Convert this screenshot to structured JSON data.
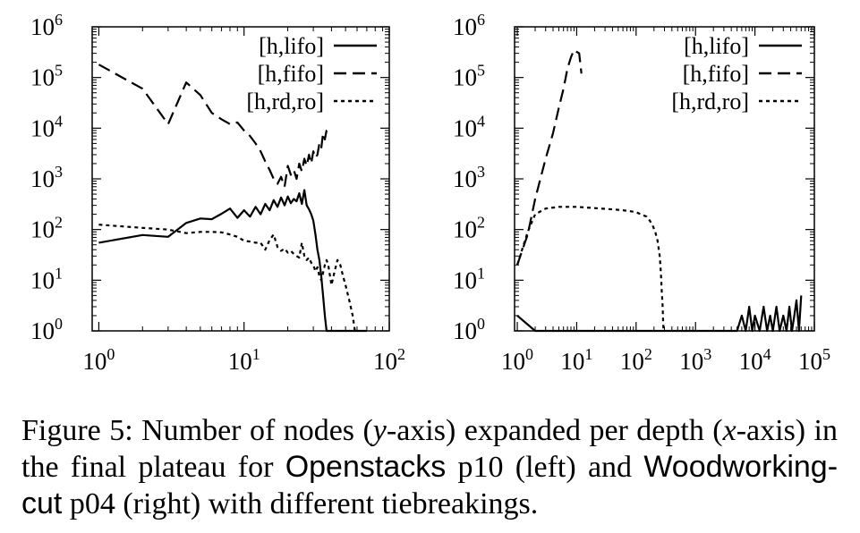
{
  "caption": {
    "p1": "Figure 5: Number of nodes (",
    "y_var": "y",
    "p2": "-axis) expanded per depth (",
    "x_var": "x",
    "p3": "-axis) in the final plateau for ",
    "dom1": "Openstacks",
    "p4": " p10 (left) and ",
    "dom2": "Woodworking-cut",
    "p5": " p04 (right) with different tiebreakings."
  },
  "chart_data": [
    {
      "type": "line",
      "xscale": "log",
      "yscale": "log",
      "xlim": [
        0.9,
        100
      ],
      "ylim": [
        1,
        1000000
      ],
      "x_ticks": [
        1,
        10,
        100
      ],
      "x_tick_labels": [
        [
          "10",
          "0"
        ],
        [
          "10",
          "1"
        ],
        [
          "10",
          "2"
        ]
      ],
      "y_ticks": [
        1,
        10,
        100,
        1000,
        10000,
        100000,
        1000000
      ],
      "y_tick_labels": [
        [
          "10",
          "0"
        ],
        [
          "10",
          "1"
        ],
        [
          "10",
          "2"
        ],
        [
          "10",
          "3"
        ],
        [
          "10",
          "4"
        ],
        [
          "10",
          "5"
        ],
        [
          "10",
          "6"
        ]
      ],
      "legend_position": "top-right",
      "series": [
        {
          "name": "[h,lifo]",
          "dash": "solid",
          "x": [
            1,
            2,
            3,
            4,
            5,
            6,
            7,
            8,
            9,
            10,
            11,
            12,
            13,
            14,
            15,
            16,
            17,
            18,
            19,
            20,
            21,
            22,
            23,
            24,
            25,
            26,
            27,
            28,
            29,
            30,
            31,
            32,
            33,
            34,
            35,
            36,
            37,
            38,
            39,
            40,
            50,
            70
          ],
          "y": [
            55,
            78,
            72,
            135,
            165,
            160,
            205,
            260,
            170,
            240,
            180,
            280,
            200,
            320,
            240,
            380,
            280,
            430,
            300,
            450,
            330,
            400,
            360,
            520,
            320,
            600,
            300,
            250,
            200,
            150,
            80,
            40,
            25,
            12,
            5,
            2,
            1,
            1,
            1,
            1,
            1,
            1
          ]
        },
        {
          "name": "[h,fifo]",
          "dash": "dashed",
          "x": [
            1,
            2,
            3,
            4,
            5,
            6,
            7,
            8,
            9,
            10,
            11,
            12,
            13,
            14,
            15,
            16,
            17,
            18,
            19,
            20,
            21,
            22,
            23,
            24,
            25,
            26,
            27,
            28,
            29,
            30,
            31,
            32,
            33,
            34,
            35,
            36,
            37,
            38
          ],
          "y": [
            180000,
            60000,
            12000,
            80000,
            45000,
            20000,
            15000,
            12000,
            13000,
            9000,
            7000,
            5000,
            3500,
            2200,
            1500,
            1000,
            800,
            1100,
            700,
            1800,
            1200,
            1500,
            1000,
            2000,
            1400,
            2500,
            1800,
            3000,
            2000,
            3500,
            2600,
            3000,
            5000,
            4000,
            8000,
            6000,
            9000,
            9500
          ]
        },
        {
          "name": "[h,rd,ro]",
          "dash": "dotted",
          "x": [
            1,
            2,
            3,
            4,
            5,
            6,
            7,
            8,
            9,
            10,
            11,
            12,
            13,
            14,
            15,
            16,
            17,
            18,
            19,
            20,
            21,
            22,
            23,
            24,
            25,
            26,
            27,
            28,
            29,
            30,
            31,
            32,
            33,
            34,
            35,
            36,
            37,
            38,
            40,
            42,
            44,
            46,
            48,
            50,
            53,
            56,
            58,
            60
          ],
          "y": [
            125,
            108,
            100,
            85,
            90,
            90,
            88,
            80,
            72,
            60,
            58,
            55,
            55,
            40,
            62,
            80,
            45,
            38,
            42,
            35,
            38,
            33,
            30,
            28,
            55,
            30,
            25,
            28,
            22,
            20,
            15,
            18,
            12,
            10,
            14,
            20,
            25,
            20,
            8,
            15,
            25,
            20,
            12,
            8,
            4,
            2,
            1,
            1
          ]
        }
      ]
    },
    {
      "type": "line",
      "xscale": "log",
      "yscale": "log",
      "xlim": [
        0.9,
        100000
      ],
      "ylim": [
        1,
        1000000
      ],
      "x_ticks": [
        1,
        10,
        100,
        1000,
        10000,
        100000
      ],
      "x_tick_labels": [
        [
          "10",
          "0"
        ],
        [
          "10",
          "1"
        ],
        [
          "10",
          "2"
        ],
        [
          "10",
          "3"
        ],
        [
          "10",
          "4"
        ],
        [
          "10",
          "5"
        ]
      ],
      "y_ticks": [
        1,
        10,
        100,
        1000,
        10000,
        100000,
        1000000
      ],
      "y_tick_labels": [
        [
          "10",
          "0"
        ],
        [
          "10",
          "1"
        ],
        [
          "10",
          "2"
        ],
        [
          "10",
          "3"
        ],
        [
          "10",
          "4"
        ],
        [
          "10",
          "5"
        ],
        [
          "10",
          "6"
        ]
      ],
      "legend_position": "top-right",
      "series": [
        {
          "name": "[h,lifo]",
          "dash": "solid",
          "x": [
            1,
            2,
            5,
            10,
            50,
            100,
            500,
            1000,
            3000,
            5000,
            6000,
            7000,
            8000,
            9000,
            10000,
            12000,
            14000,
            16000,
            18000,
            20000,
            23000,
            26000,
            30000,
            34000,
            38000,
            42000,
            46000,
            50000,
            55000,
            60000
          ],
          "y": [
            2,
            1,
            1,
            1,
            1,
            1,
            1,
            1,
            1,
            1,
            2,
            1,
            3,
            1,
            2,
            1,
            3,
            1,
            2,
            1,
            3,
            1,
            2,
            1,
            3,
            1,
            2,
            4,
            1,
            5
          ]
        },
        {
          "name": "[h,fifo]",
          "dash": "dashed",
          "x": [
            1,
            1.5,
            2,
            3,
            4,
            5,
            6,
            7,
            8,
            9,
            10,
            11,
            12
          ],
          "y": [
            20,
            80,
            400,
            2500,
            8000,
            25000,
            60000,
            150000,
            250000,
            350000,
            320000,
            300000,
            120000
          ]
        },
        {
          "name": "[h,rd,ro]",
          "dash": "dotted",
          "x": [
            1,
            1.5,
            2,
            3,
            5,
            10,
            20,
            40,
            60,
            80,
            100,
            120,
            150,
            170,
            190,
            210,
            230,
            250,
            260,
            270,
            280,
            285,
            290
          ],
          "y": [
            20,
            90,
            200,
            260,
            280,
            280,
            265,
            250,
            240,
            230,
            220,
            200,
            180,
            150,
            120,
            90,
            60,
            30,
            15,
            6,
            3,
            1.5,
            1
          ]
        }
      ]
    }
  ]
}
